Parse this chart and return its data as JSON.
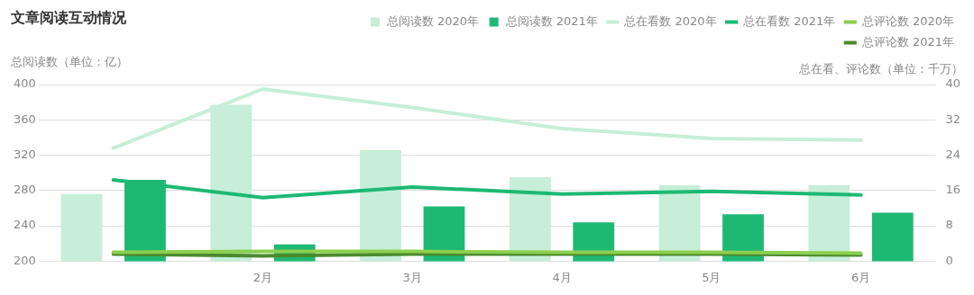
{
  "chart_data": {
    "type": "bar",
    "title": "文章阅读互动情况",
    "ylabel": "总阅读数（单位：亿）",
    "y2label": "总在看、评论数（单位：千万）",
    "categories": [
      null,
      "2月",
      "3月",
      "4月",
      "5月",
      "6月"
    ],
    "series": [
      {
        "name": "总阅读数 2020年",
        "color": "#c6eed8",
        "values": [
          276,
          377,
          326,
          295,
          286,
          286
        ]
      },
      {
        "name": "总阅读数 2021年",
        "color": "#1db974",
        "values": [
          292,
          219,
          262,
          244,
          253,
          255
        ]
      },
      {
        "name": "总在看数 2020年",
        "type": "line",
        "axis": "y2",
        "color": "#c6eed8",
        "values": [
          25.6,
          39,
          34.8,
          30,
          27.8,
          27.4
        ]
      },
      {
        "name": "总在看数 2021年",
        "type": "line",
        "axis": "y2",
        "color": "#1db974",
        "values": [
          18.4,
          14.4,
          16.8,
          15.2,
          15.8,
          15
        ]
      },
      {
        "name": "总评论数 2020年",
        "type": "line",
        "axis": "y2",
        "color": "#8bcf4e",
        "values": [
          2,
          2.2,
          2.2,
          2,
          2,
          1.8
        ]
      },
      {
        "name": "总评论数 2021年",
        "type": "line",
        "axis": "y2",
        "color": "#4a8a2e",
        "values": [
          1.6,
          1.2,
          1.6,
          1.6,
          1.6,
          1.4
        ]
      }
    ],
    "ylim": [
      200,
      400
    ],
    "yticks": [
      200,
      240,
      280,
      320,
      360,
      400
    ],
    "y2lim": [
      0,
      40
    ],
    "y2ticks": [
      0,
      8,
      16,
      24,
      32,
      40
    ],
    "grid": "y",
    "legend": "top right",
    "marker": "none",
    "line_style": "solid"
  }
}
